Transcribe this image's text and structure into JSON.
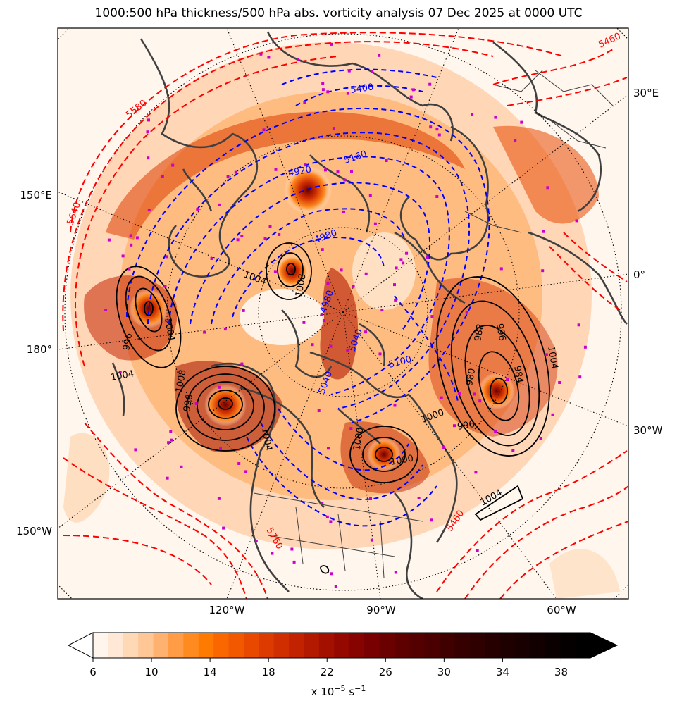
{
  "title": "1000:500 hPa thickness/500 hPa abs. vorticity analysis 07 Dec 2025 at 0000 UTC",
  "map": {
    "projection": "north polar stereographic",
    "longitude_labels": {
      "left": [
        "150°E",
        "180°",
        "150°W"
      ],
      "right": [
        "30°E",
        "0°",
        "30°W"
      ],
      "bottom": [
        "120°W",
        "90°W",
        "60°W"
      ]
    },
    "thickness_labels_cold": [
      "5400",
      "5160",
      "4920",
      "4980",
      "4980",
      "5040",
      "5100",
      "5040"
    ],
    "thickness_labels_warm": [
      "5580",
      "5640",
      "5460",
      "5760",
      "5460"
    ],
    "pressure_labels": [
      "1004",
      "996",
      "1004",
      "996",
      "1004",
      "1008",
      "988",
      "996",
      "984",
      "1000",
      "980",
      "996",
      "1004",
      "1000",
      "1000",
      "1004",
      "1004",
      "1008"
    ],
    "colors": {
      "thickness_cold": "#0000ff",
      "thickness_warm": "#ff0000",
      "pressure": "#000000",
      "coastline": "#404040",
      "station_marker": "#cc00cc",
      "graticule": "#000000"
    }
  },
  "colorbar": {
    "ticks": [
      "6",
      "10",
      "14",
      "18",
      "22",
      "26",
      "30",
      "34",
      "38"
    ],
    "units_label": "x 10",
    "units_exp": "−5",
    "units_tail": " s",
    "units_exp2": "−1",
    "colors": [
      "#fff5ec",
      "#ffe9d6",
      "#ffd9b6",
      "#ffc795",
      "#ffb270",
      "#ff9c45",
      "#ff8a20",
      "#ff7a00",
      "#fa6700",
      "#f25800",
      "#e84800",
      "#dd3a00",
      "#d02d00",
      "#c22200",
      "#b31800",
      "#a31000",
      "#940800",
      "#860300",
      "#780000",
      "#6b0000",
      "#5f0000",
      "#540000",
      "#4a0000",
      "#400000",
      "#370000",
      "#2e0000",
      "#260000",
      "#1f0000",
      "#180000",
      "#120000",
      "#0b0000",
      "#050000",
      "#000000"
    ]
  }
}
